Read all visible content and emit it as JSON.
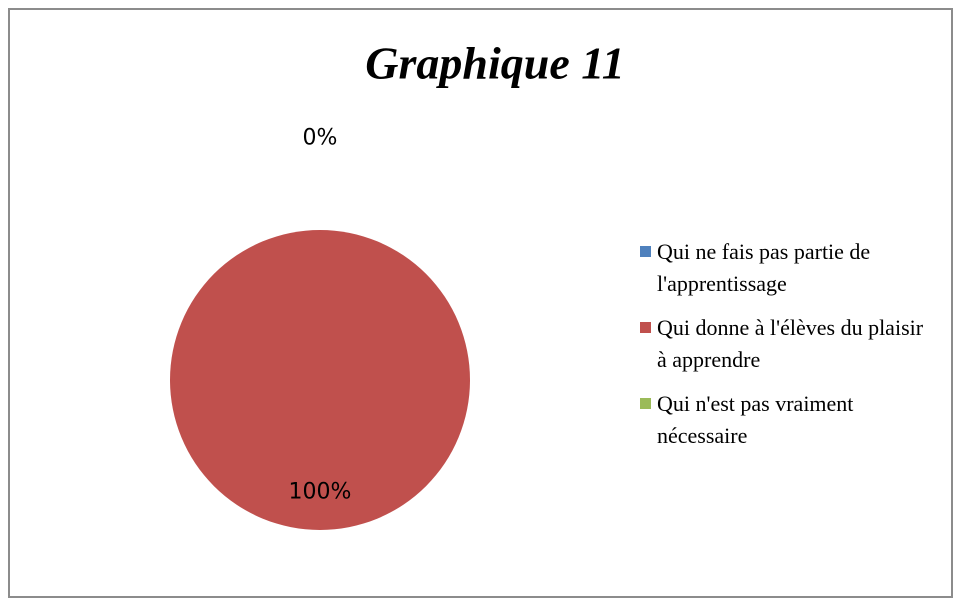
{
  "chart_data": {
    "type": "pie",
    "title": "Graphique 11",
    "categories": [
      "Qui ne fais pas partie de l'apprentissage",
      "Qui donne à l'élèves du plaisir à apprendre",
      "Qui n'est pas vraiment nécessaire"
    ],
    "values": [
      0,
      100,
      0
    ],
    "value_labels": [
      "0%",
      "100%",
      null
    ],
    "colors": [
      "#4f81bd",
      "#c0504d",
      "#9bbb59"
    ],
    "legend": "right"
  }
}
